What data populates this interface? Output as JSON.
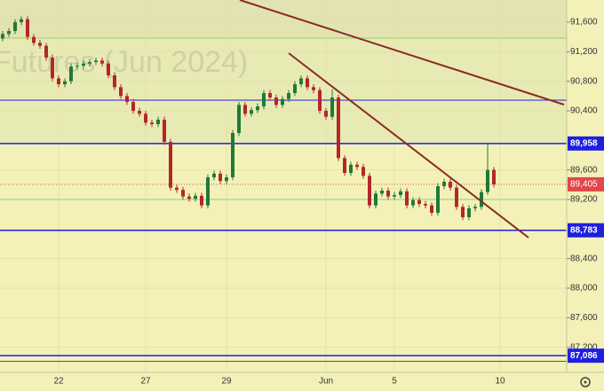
{
  "chart_data": {
    "type": "candlestick",
    "watermark": "Futures (Jun 2024)",
    "ylim": [
      86860,
      91900
    ],
    "yticks": [
      {
        "value": 91600,
        "label": "91,600"
      },
      {
        "value": 91200,
        "label": "91,200"
      },
      {
        "value": 90800,
        "label": "90,800"
      },
      {
        "value": 90400,
        "label": "90,400"
      },
      {
        "value": 89600,
        "label": "89,600"
      },
      {
        "value": 89200,
        "label": "89,200"
      },
      {
        "value": 88400,
        "label": "88,400"
      },
      {
        "value": 88000,
        "label": "88,000"
      },
      {
        "value": 87600,
        "label": "87,600"
      },
      {
        "value": 87200,
        "label": "87,200"
      }
    ],
    "xticks": [
      {
        "value": 9,
        "label": "22"
      },
      {
        "value": 23,
        "label": "27"
      },
      {
        "value": 36,
        "label": "29"
      },
      {
        "value": 52,
        "label": "Jun"
      },
      {
        "value": 63,
        "label": "5"
      },
      {
        "value": 80,
        "label": "10"
      }
    ],
    "up_color": "#1f7a3a",
    "down_color": "#b3272b",
    "open": [
      91380,
      91440,
      91480,
      91600,
      91640,
      91400,
      91320,
      91280,
      91120,
      90840,
      90760,
      90800,
      91000,
      91010,
      91040,
      91060,
      91080,
      91040,
      90880,
      90720,
      90600,
      90520,
      90400,
      90360,
      90240,
      90220,
      90280,
      89980,
      89360,
      89330,
      89240,
      89210,
      89250,
      89120,
      89500,
      89550,
      89450,
      89500,
      90100,
      90480,
      90360,
      90410,
      90460,
      90640,
      90580,
      90480,
      90560,
      90640,
      90760,
      90840,
      90720,
      90680,
      90400,
      90320,
      90580,
      89760,
      89560,
      89670,
      89640,
      89520,
      89120,
      89280,
      89320,
      89240,
      89260,
      89310,
      89120,
      89190,
      89140,
      89120,
      89020,
      89380,
      89440,
      89360,
      89100,
      88960,
      89080,
      89100,
      89300,
      89600
    ],
    "high": [
      91480,
      91520,
      91640,
      91680,
      91680,
      91440,
      91360,
      91320,
      91160,
      90880,
      90840,
      91040,
      91050,
      91080,
      91100,
      91120,
      91120,
      91080,
      90920,
      90760,
      90640,
      90560,
      90440,
      90400,
      90280,
      90320,
      90320,
      90020,
      89400,
      89370,
      89280,
      89290,
      89290,
      89540,
      89590,
      89590,
      89540,
      90140,
      90520,
      90520,
      90450,
      90500,
      90680,
      90680,
      90620,
      90600,
      90680,
      90800,
      90880,
      90880,
      90760,
      90720,
      90440,
      90690,
      90620,
      89800,
      89710,
      89710,
      89680,
      89560,
      89320,
      89360,
      89360,
      89300,
      89350,
      89350,
      89230,
      89230,
      89180,
      89160,
      89420,
      89480,
      89480,
      89400,
      89140,
      89120,
      89140,
      89340,
      89960,
      89640
    ],
    "low": [
      91340,
      91400,
      91440,
      91560,
      91360,
      91280,
      91240,
      91080,
      90800,
      90720,
      90720,
      90760,
      90960,
      90970,
      91000,
      91020,
      91000,
      90840,
      90680,
      90560,
      90480,
      90360,
      90320,
      90200,
      90180,
      90180,
      89940,
      89320,
      89290,
      89200,
      89170,
      89170,
      89080,
      89080,
      89460,
      89410,
      89410,
      89460,
      90060,
      90320,
      90320,
      90370,
      90420,
      90540,
      90440,
      90440,
      90520,
      90600,
      90720,
      90680,
      90640,
      90360,
      90280,
      90280,
      89720,
      89520,
      89520,
      89600,
      89480,
      89080,
      89080,
      89240,
      89200,
      89200,
      89220,
      89080,
      89080,
      89100,
      89080,
      88980,
      88980,
      89340,
      89320,
      89060,
      88920,
      88920,
      89040,
      89060,
      89260,
      89365
    ],
    "close": [
      91440,
      91480,
      91600,
      91640,
      91400,
      91320,
      91280,
      91120,
      90840,
      90760,
      90800,
      91000,
      91010,
      91040,
      91060,
      91080,
      91040,
      90880,
      90720,
      90600,
      90520,
      90400,
      90360,
      90240,
      90220,
      90280,
      89980,
      89360,
      89330,
      89240,
      89210,
      89250,
      89120,
      89500,
      89550,
      89450,
      89500,
      90100,
      90480,
      90360,
      90410,
      90460,
      90640,
      90580,
      90480,
      90560,
      90640,
      90760,
      90840,
      90720,
      90680,
      90400,
      90320,
      90580,
      89760,
      89560,
      89670,
      89640,
      89520,
      89120,
      89280,
      89320,
      89240,
      89260,
      89310,
      89120,
      89190,
      89140,
      89120,
      89020,
      89380,
      89440,
      89360,
      89100,
      88960,
      89080,
      89100,
      89300,
      89600,
      89405
    ],
    "levels": [
      {
        "value": 91384,
        "color": "#9acd6a"
      },
      {
        "value": 90544,
        "color": "#1f1fe0"
      },
      {
        "value": 89958,
        "label": "89,958",
        "color": "#1f1fe0"
      },
      {
        "value": 89200,
        "color": "#7fd49a"
      },
      {
        "value": 88783,
        "label": "88,783",
        "color": "#1f1fe0"
      },
      {
        "value": 87086,
        "label": "87,086",
        "color": "#1f1fe0"
      },
      {
        "value": 87010,
        "color": "#d02020"
      }
    ],
    "last_price": {
      "value": 89405,
      "label": "89,405",
      "color": "#e0464a"
    }
  }
}
